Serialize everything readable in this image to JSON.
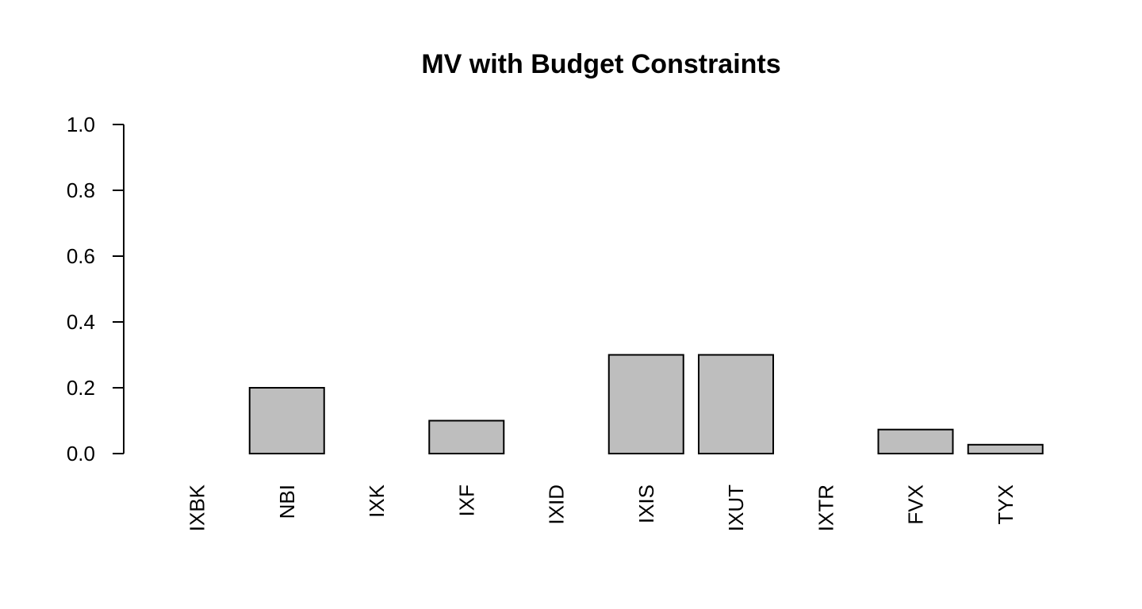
{
  "chart_data": {
    "type": "bar",
    "title": "MV with Budget Constraints",
    "xlabel": "",
    "ylabel": "",
    "categories": [
      "IXBK",
      "NBI",
      "IXK",
      "IXF",
      "IXID",
      "IXIS",
      "IXUT",
      "IXTR",
      "FVX",
      "TYX"
    ],
    "values": [
      0.0,
      0.2,
      0.0,
      0.1,
      0.0,
      0.3,
      0.3,
      0.0,
      0.073,
      0.027
    ],
    "ylim": [
      0,
      1
    ],
    "yticks": [
      "0.0",
      "0.2",
      "0.4",
      "0.6",
      "0.8",
      "1.0"
    ],
    "grid": false,
    "legend": "none",
    "bar_fill": "#bebebe",
    "bar_stroke": "#000000"
  }
}
